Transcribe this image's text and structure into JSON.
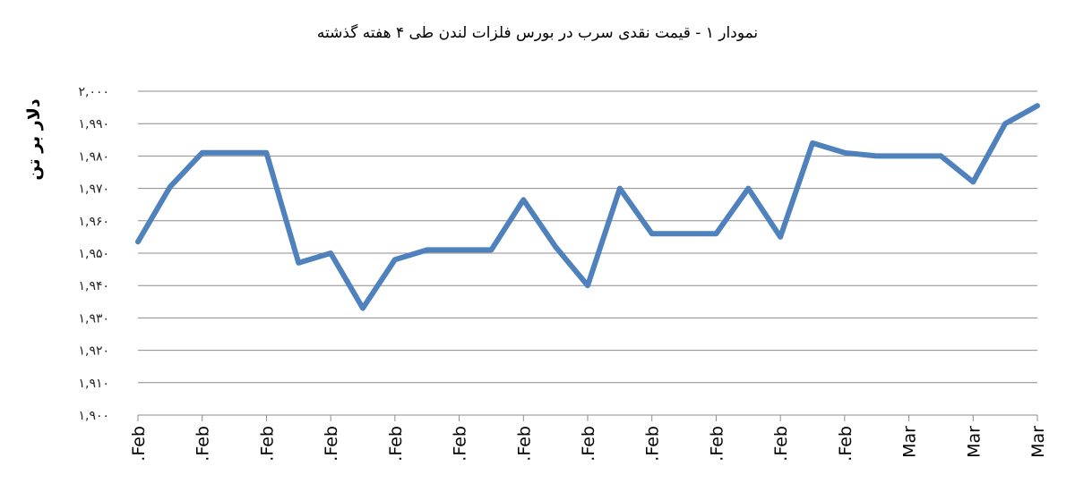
{
  "chart_data": {
    "type": "line",
    "title": "نمودار ۱ - قیمت نقدی سرب  در بورس فلزات لندن طی ۴ هفته گذشته",
    "ylabel": "دلار بر تن",
    "xlabel": "",
    "ylim": [
      1900,
      2000
    ],
    "y_tick_step": 10,
    "y_tick_labels": [
      "۱,۹۰۰",
      "۱,۹۱۰",
      "۱,۹۲۰",
      "۱,۹۳۰",
      "۱,۹۴۰",
      "۱,۹۵۰",
      "۱,۹۶۰",
      "۱,۹۷۰",
      "۱,۹۸۰",
      "۱,۹۹۰",
      "۲,۰۰۰"
    ],
    "grid": true,
    "legend": "none",
    "x_tick_labels": [
      ".Feb",
      ".Feb",
      ".Feb",
      ".Feb",
      ".Feb",
      ".Feb",
      ".Feb",
      ".Feb",
      ".Feb",
      ".Feb",
      ".Feb",
      ".Feb",
      "Mar",
      "Mar",
      "Mar"
    ],
    "x_tick_every": 2,
    "series": [
      {
        "color": "#4f81bd",
        "values": [
          1953.5,
          1970.5,
          1981,
          1981,
          1981,
          1947,
          1950,
          1933,
          1948,
          1951,
          1951,
          1951,
          1966.5,
          1952,
          1940,
          1970,
          1956,
          1956,
          1956,
          1970,
          1955,
          1984,
          1981,
          1980,
          1980,
          1980,
          1972,
          1990,
          1995.5
        ]
      }
    ]
  }
}
